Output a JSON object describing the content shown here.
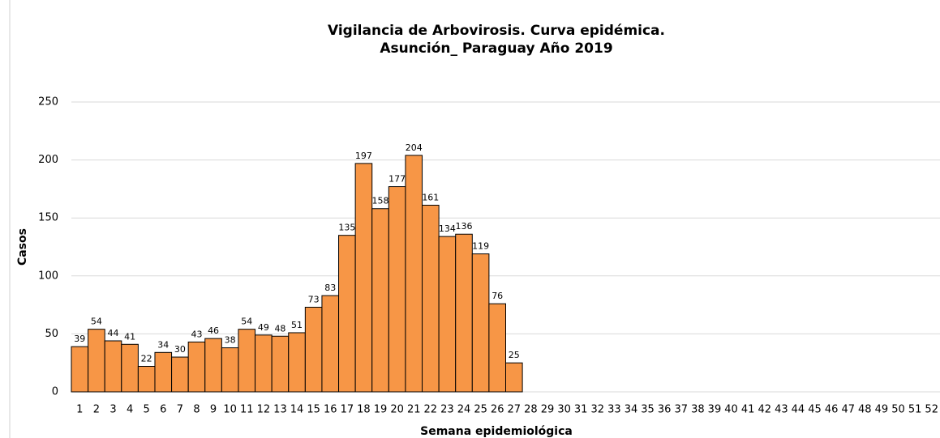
{
  "chart_data": {
    "type": "bar",
    "title": "Vigilancia de Arbovirosis. Curva epidémica.",
    "subtitle": "Asunción_ Paraguay Año 2019",
    "x_label": "Semana epidemiológica",
    "y_label": "Casos",
    "categories": [
      "1",
      "2",
      "3",
      "4",
      "5",
      "6",
      "7",
      "8",
      "9",
      "10",
      "11",
      "12",
      "13",
      "14",
      "15",
      "16",
      "17",
      "18",
      "19",
      "20",
      "21",
      "22",
      "23",
      "24",
      "25",
      "26",
      "27",
      "28",
      "29",
      "30",
      "31",
      "32",
      "33",
      "34",
      "35",
      "36",
      "37",
      "38",
      "39",
      "40",
      "41",
      "42",
      "43",
      "44",
      "45",
      "46",
      "47",
      "48",
      "49",
      "50",
      "51",
      "52"
    ],
    "values": [
      39,
      54,
      44,
      41,
      22,
      34,
      30,
      43,
      46,
      38,
      54,
      49,
      48,
      51,
      73,
      83,
      135,
      197,
      158,
      177,
      204,
      161,
      134,
      136,
      119,
      76,
      25,
      null,
      null,
      null,
      null,
      null,
      null,
      null,
      null,
      null,
      null,
      null,
      null,
      null,
      null,
      null,
      null,
      null,
      null,
      null,
      null,
      null,
      null,
      null,
      null,
      null
    ],
    "color": "#f79646",
    "ylim": [
      0,
      250
    ],
    "yticks": [
      0,
      50,
      100,
      150,
      200,
      250
    ],
    "grid": true
  }
}
